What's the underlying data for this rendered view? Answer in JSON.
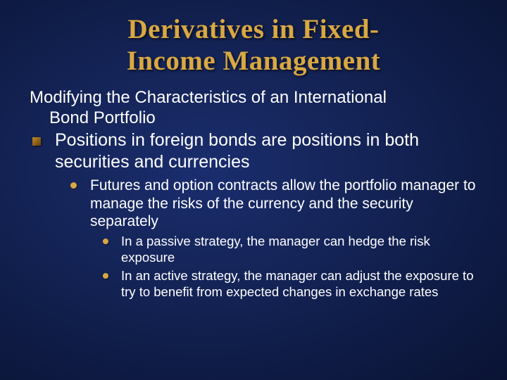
{
  "slide": {
    "title_line1": "Derivatives in Fixed-",
    "title_line2": "Income Management",
    "subtitle_line1": "Modifying the Characteristics of an International",
    "subtitle_line2": "Bond Portfolio",
    "l1_text": "Positions in foreign bonds are positions in both securities and currencies",
    "l2_text": "Futures and option contracts allow the portfolio manager to manage the risks of the currency and the security separately",
    "l3a_text": "In a passive strategy, the manager can hedge the risk exposure",
    "l3b_text": "In an active strategy, the manager can adjust the exposure to try to benefit from expected changes in exchange rates"
  },
  "styling": {
    "background_gradient": [
      "#1a2d6e",
      "#152559",
      "#0f1c47",
      "#0a1333"
    ],
    "title_color": "#d9a842",
    "title_font": "Georgia serif",
    "title_fontsize_pt": 30,
    "body_color": "#ffffff",
    "body_font": "Arial sans-serif",
    "bullet_square_gradient": [
      "#c08a2a",
      "#8a5e18",
      "#5e3e10"
    ],
    "bullet_dot_color": "#d9a842",
    "subtitle_fontsize_pt": 18,
    "l1_fontsize_pt": 19,
    "l2_fontsize_pt": 16,
    "l3_fontsize_pt": 14
  }
}
